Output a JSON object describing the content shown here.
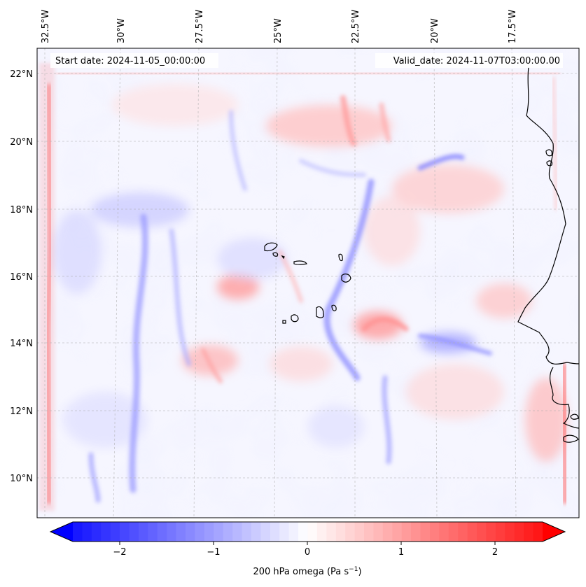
{
  "map": {
    "start_date_text": "Start date: 2024-11-05_00:00:00",
    "valid_date_text": "Valid_date: 2024-11-07T03:00:00.00",
    "lon_ticks": [
      "32.5°W",
      "30°W",
      "27.5°W",
      "25°W",
      "22.5°W",
      "20°W",
      "17.5°W"
    ],
    "lat_ticks": [
      "22°N",
      "20°N",
      "18°N",
      "16°N",
      "14°N",
      "12°N",
      "10°N"
    ]
  },
  "colorbar": {
    "ticks": [
      "−2",
      "−1",
      "0",
      "1",
      "2"
    ],
    "label_prefix": "200 hPa omega (Pa s",
    "label_sup": "−1",
    "label_suffix": ")",
    "min": -2.7,
    "max": 2.7,
    "colors": {
      "low": "#0000ff",
      "mid": "#ffffff",
      "high": "#ff0000"
    }
  }
}
